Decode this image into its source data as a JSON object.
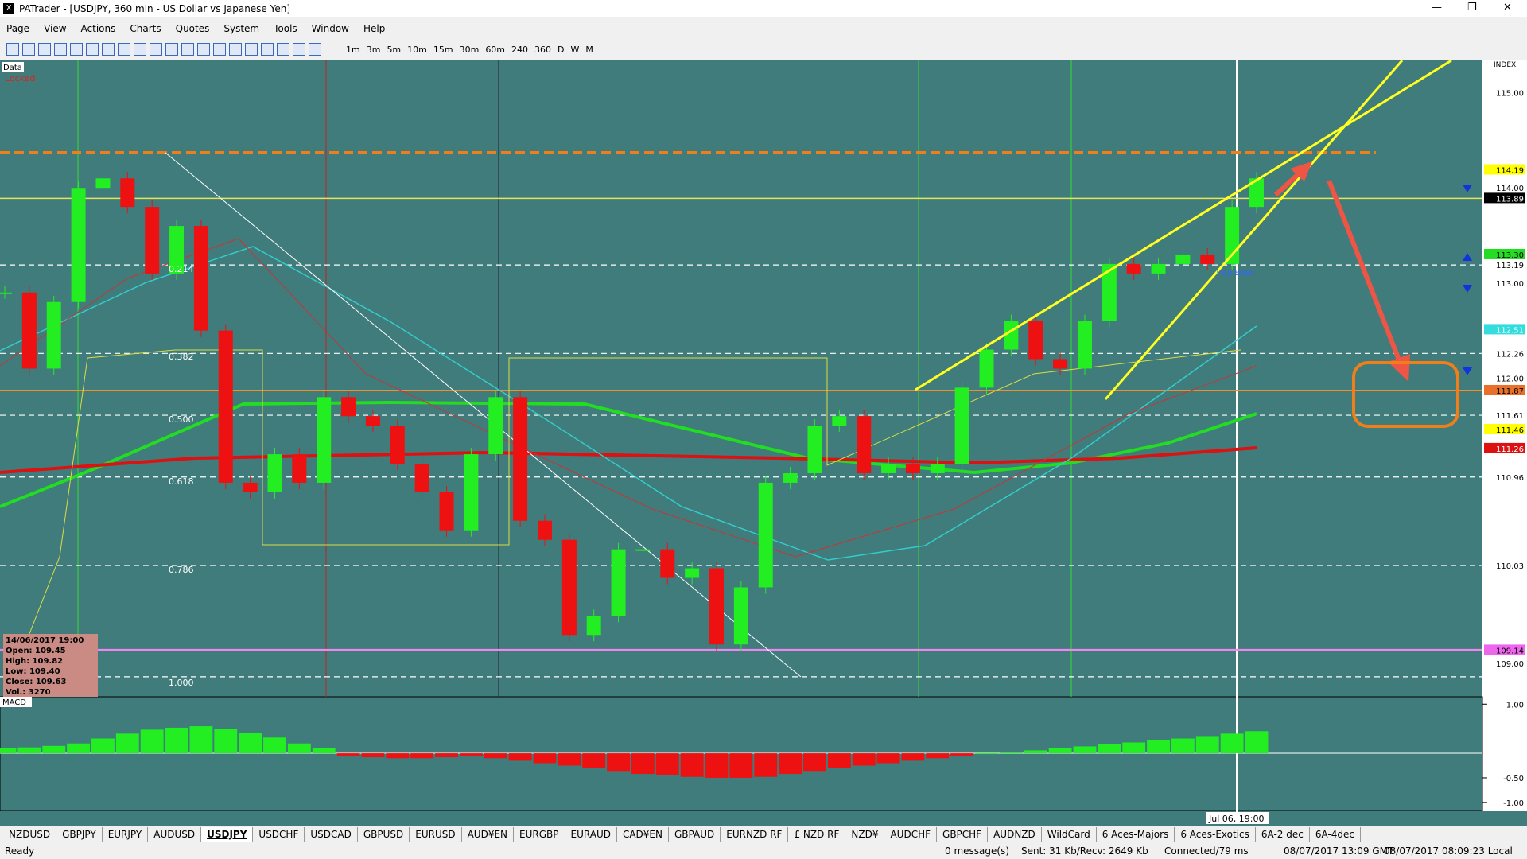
{
  "window": {
    "title": "PATrader - [USDJPY, 360 min - US Dollar vs Japanese Yen]"
  },
  "menu": [
    "Page",
    "View",
    "Actions",
    "Charts",
    "Quotes",
    "System",
    "Tools",
    "Window",
    "Help"
  ],
  "timeframes": [
    "1m",
    "3m",
    "5m",
    "10m",
    "15m",
    "30m",
    "60m",
    "240",
    "360",
    "D",
    "W",
    "M"
  ],
  "chart": {
    "data_label": "Data",
    "locked_label": "Locked",
    "index_label": "INDEX",
    "trap_label": "Trap Base",
    "date_cursor": "Jul 06, 19:00",
    "ylim": [
      108.65,
      115.34
    ],
    "price_labels": [
      {
        "value": 115,
        "label": "115.00",
        "bg": "#ffffff",
        "fg": "#000000"
      },
      {
        "value": 114.19,
        "label": "114.19",
        "bg": "#ffff00",
        "fg": "#000000"
      },
      {
        "value": 114,
        "label": "114.00",
        "bg": "#ffffff",
        "fg": "#000000"
      },
      {
        "value": 113.89,
        "label": "113.89",
        "bg": "#000000",
        "fg": "#ffffff"
      },
      {
        "value": 113.3,
        "label": "113.30",
        "bg": "#22dd22",
        "fg": "#000000"
      },
      {
        "value": 113.19,
        "label": "113.19",
        "bg": "#ffffff",
        "fg": "#000000"
      },
      {
        "value": 113,
        "label": "113.00",
        "bg": "#ffffff",
        "fg": "#000000"
      },
      {
        "value": 112.51,
        "label": "112.51",
        "bg": "#33dddd",
        "fg": "#ffffff"
      },
      {
        "value": 112.26,
        "label": "112.26",
        "bg": "#ffffff",
        "fg": "#000000"
      },
      {
        "value": 112,
        "label": "112.00",
        "bg": "#ffffff",
        "fg": "#000000"
      },
      {
        "value": 111.87,
        "label": "111.87",
        "bg": "#e8702a",
        "fg": "#000000"
      },
      {
        "value": 111.61,
        "label": "111.61",
        "bg": "#ffffff",
        "fg": "#000000"
      },
      {
        "value": 111.46,
        "label": "111.46",
        "bg": "#ffff00",
        "fg": "#000000"
      },
      {
        "value": 111.26,
        "label": "111.26",
        "bg": "#dd1111",
        "fg": "#ffffff"
      },
      {
        "value": 110.96,
        "label": "110.96",
        "bg": "#ffffff",
        "fg": "#000000"
      },
      {
        "value": 110.03,
        "label": "110.03",
        "bg": "#ffffff",
        "fg": "#000000"
      },
      {
        "value": 109.14,
        "label": "109.14",
        "bg": "#ee66ee",
        "fg": "#000000"
      },
      {
        "value": 109,
        "label": "109.00",
        "bg": "#ffffff",
        "fg": "#000000"
      }
    ],
    "levels": [
      {
        "value": 114.37,
        "color": "#f07f1a",
        "dash": true,
        "width": 4
      },
      {
        "value": 113.89,
        "color": "#e6e65a",
        "dash": false,
        "width": 1.5
      },
      {
        "value": 113.19,
        "color": "#ffffff",
        "dash": true,
        "width": 1.2
      },
      {
        "value": 112.26,
        "color": "#ffffff",
        "dash": true,
        "width": 1.2
      },
      {
        "value": 111.87,
        "color": "#f0902a",
        "dash": false,
        "width": 2
      },
      {
        "value": 111.61,
        "color": "#ffffff",
        "dash": true,
        "width": 1.2
      },
      {
        "value": 110.96,
        "color": "#ffffff",
        "dash": true,
        "width": 1.2
      },
      {
        "value": 110.03,
        "color": "#ffffff",
        "dash": true,
        "width": 1.2
      },
      {
        "value": 109.14,
        "color": "#ee88ee",
        "dash": false,
        "width": 3
      },
      {
        "value": 108.86,
        "color": "#ffffff",
        "dash": true,
        "width": 1.2
      }
    ],
    "fib_labels": [
      "0.214",
      "0.382",
      "0.500",
      "0.618",
      "0.786",
      "1.000"
    ],
    "closes": [
      112.9,
      112.1,
      112.8,
      114.0,
      114.1,
      113.8,
      113.1,
      113.6,
      112.5,
      110.9,
      110.8,
      111.2,
      110.9,
      111.8,
      111.6,
      111.5,
      111.1,
      110.8,
      110.4,
      111.2,
      111.8,
      110.5,
      110.3,
      109.3,
      109.5,
      110.2,
      110.2,
      109.9,
      110.0,
      109.2,
      109.8,
      110.9,
      111.0,
      111.5,
      111.6,
      111.0,
      111.1,
      111.0,
      111.1,
      111.9,
      112.3,
      112.6,
      112.2,
      112.1,
      112.6,
      113.2,
      113.1,
      113.2,
      113.3,
      113.2,
      113.8,
      114.1
    ],
    "up_color": "#22ee22",
    "down_color": "#ee1111",
    "ohlc": [
      "14/06/2017 19:00",
      "Open: 109.45",
      "High: 109.82",
      "Low: 109.40",
      "Close: 109.63",
      "Vol.: 3270"
    ]
  },
  "macd": {
    "label": "MACD",
    "ylim": [
      -1.18,
      1.15
    ],
    "yticks": [
      {
        "value": 1,
        "label": "1.00"
      },
      {
        "value": -0.5,
        "label": "-0.50"
      },
      {
        "value": -1,
        "label": "-1.00"
      }
    ],
    "values": [
      0.1,
      0.12,
      0.15,
      0.2,
      0.3,
      0.4,
      0.48,
      0.52,
      0.55,
      0.5,
      0.42,
      0.32,
      0.2,
      0.1,
      -0.05,
      -0.08,
      -0.1,
      -0.1,
      -0.08,
      -0.06,
      -0.1,
      -0.15,
      -0.2,
      -0.25,
      -0.3,
      -0.36,
      -0.42,
      -0.45,
      -0.48,
      -0.5,
      -0.5,
      -0.48,
      -0.42,
      -0.36,
      -0.3,
      -0.25,
      -0.2,
      -0.15,
      -0.1,
      -0.05,
      0.0,
      0.03,
      0.06,
      0.1,
      0.14,
      0.18,
      0.22,
      0.26,
      0.3,
      0.35,
      0.4,
      0.45
    ],
    "pos_color": "#22ee22",
    "neg_color": "#ee1111"
  },
  "tabs": {
    "items": [
      "NZDUSD",
      "GBPJPY",
      "EURJPY",
      "AUDUSD",
      "USDJPY",
      "USDCHF",
      "USDCAD",
      "GBPUSD",
      "EURUSD",
      "AUD¥EN",
      "EURGBP",
      "EURAUD",
      "CAD¥EN",
      "GBPAUD",
      "EURNZD RF",
      "£ NZD RF",
      "NZD¥",
      "AUDCHF",
      "GBPCHF",
      "AUDNZD",
      "WildCard",
      "6 Aces-Majors",
      "6 Aces-Exotics",
      "6A-2 dec",
      "6A-4dec"
    ],
    "active": 4
  },
  "status": {
    "ready": "Ready",
    "messages": "0 message(s)",
    "traffic": "Sent: 31 Kb/Recv: 2649 Kb",
    "connection": "Connected/79 ms",
    "gmt": "08/07/2017 13:09 GMT",
    "local": "08/07/2017 08:09:23 Local"
  }
}
